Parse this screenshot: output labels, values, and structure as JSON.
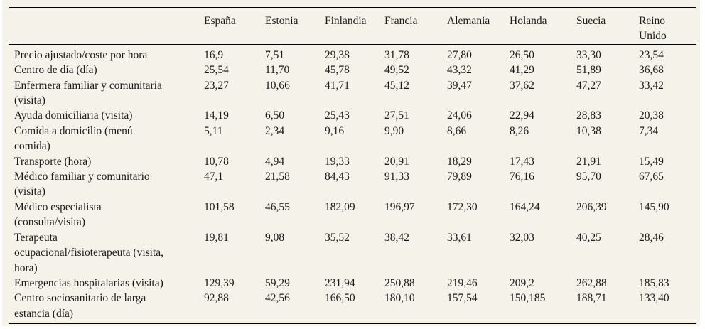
{
  "page": {
    "background_color": "#f5f2e9",
    "rule_color": "#000000",
    "text_color": "#1b1b1b"
  },
  "chart_data": {
    "type": "table",
    "columns": [
      "España",
      "Estonia",
      "Finlandia",
      "Francia",
      "Alemania",
      "Holanda",
      "Suecia",
      "Reino\nUnido"
    ],
    "row_header_label": "",
    "rows": [
      {
        "label": "Precio ajustado/coste por hora",
        "values": [
          "16,9",
          "7,51",
          "29,38",
          "31,78",
          "27,80",
          "26,50",
          "33,30",
          "23,54"
        ]
      },
      {
        "label": "Centro de día (día)",
        "values": [
          "25,54",
          "11,70",
          "45,78",
          "49,52",
          "43,32",
          "41,29",
          "51,89",
          "36,68"
        ]
      },
      {
        "label": "Enfermera familiar y comunitaria\n(visita)",
        "values": [
          "23,27",
          "10,66",
          "41,71",
          "45,12",
          "39,47",
          "37,62",
          "47,27",
          "33,42"
        ]
      },
      {
        "label": "Ayuda domiciliaria (visita)",
        "values": [
          "14,19",
          "6,50",
          "25,43",
          "27,51",
          "24,06",
          "22,94",
          "28,83",
          "20,38"
        ]
      },
      {
        "label": "Comida a domicilio (menú\ncomida)",
        "values": [
          "5,11",
          "2,34",
          "9,16",
          "9,90",
          "8,66",
          "8,26",
          "10,38",
          "7,34"
        ]
      },
      {
        "label": "Transporte (hora)",
        "values": [
          "10,78",
          "4,94",
          "19,33",
          "20,91",
          "18,29",
          "17,43",
          "21,91",
          "15,49"
        ]
      },
      {
        "label": "Médico familiar y comunitario\n(visita)",
        "values": [
          "47,1",
          "21,58",
          "84,43",
          "91,33",
          "79,89",
          "76,16",
          "95,70",
          "67,65"
        ]
      },
      {
        "label": "Médico especialista\n(consulta/visita)",
        "values": [
          "101,58",
          "46,55",
          "182,09",
          "196,97",
          "172,30",
          "164,24",
          "206,39",
          "145,90"
        ]
      },
      {
        "label": "Terapeuta\nocupacional/fisioterapeuta (visita,\nhora)",
        "values": [
          "19,81",
          "9,08",
          "35,52",
          "38,42",
          "33,61",
          "32,03",
          "40,25",
          "28,46"
        ]
      },
      {
        "label": "Emergencias hospitalarias (visita)",
        "values": [
          "129,39",
          "59,29",
          "231,94",
          "250,88",
          "219,46",
          "209,2",
          "262,88",
          "185,83"
        ]
      },
      {
        "label": "Centro sociosanitario de larga\nestancia (día)",
        "values": [
          "92,88",
          "42,56",
          "166,50",
          "180,10",
          "157,54",
          "150,185",
          "188,71",
          "133,40"
        ]
      }
    ]
  }
}
